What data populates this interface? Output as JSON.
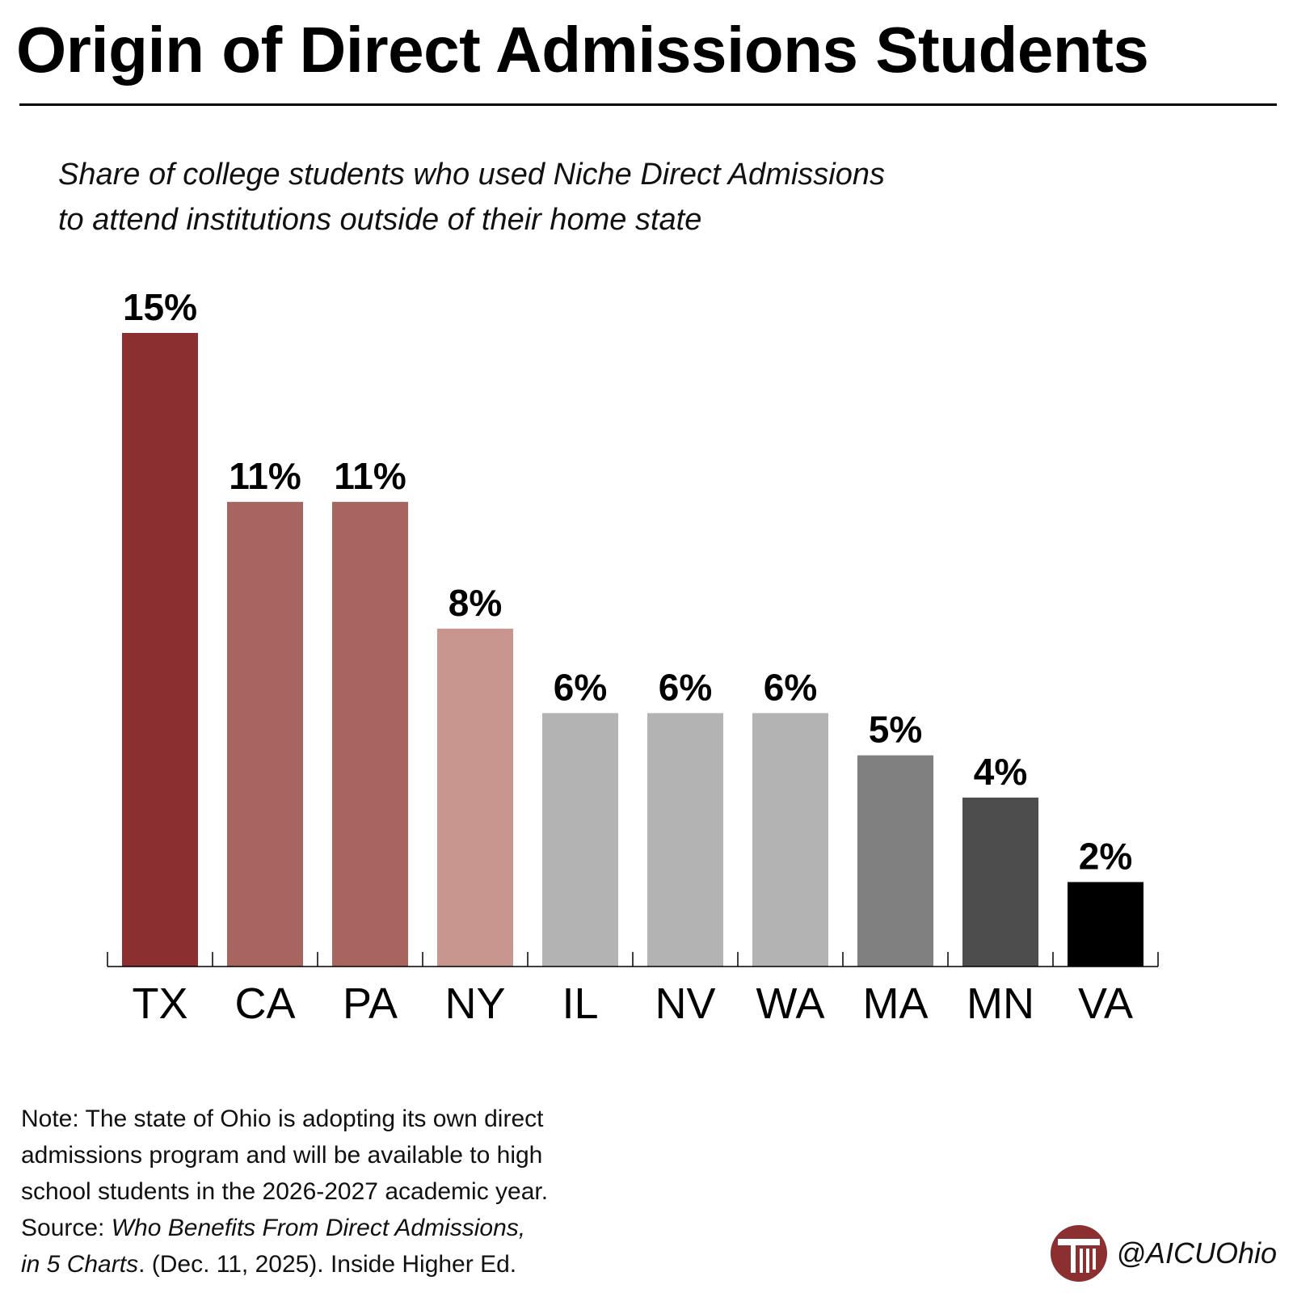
{
  "header": {
    "title": "Origin of Direct Admissions Students",
    "subtitle_line1": "Share of college students who used Niche Direct Admissions",
    "subtitle_line2": "to attend institutions outside of their home state"
  },
  "chart_data": {
    "type": "bar",
    "title": "Origin of Direct Admissions Students",
    "subtitle": "Share of college students who used Niche Direct Admissions to attend institutions outside of their home state",
    "categories": [
      "TX",
      "CA",
      "PA",
      "NY",
      "IL",
      "NV",
      "WA",
      "MA",
      "MN",
      "VA"
    ],
    "values": [
      15,
      11,
      11,
      8,
      6,
      6,
      6,
      5,
      4,
      2
    ],
    "data_labels": [
      "15%",
      "11%",
      "11%",
      "8%",
      "6%",
      "6%",
      "6%",
      "5%",
      "4%",
      "2%"
    ],
    "colors": [
      "#8b2f31",
      "#a8645e",
      "#a8645e",
      "#c8958f",
      "#b3b3b3",
      "#b3b3b3",
      "#b3b3b3",
      "#808080",
      "#4d4d4d",
      "#000000"
    ],
    "ylim": [
      0,
      15
    ],
    "xlabel": "",
    "ylabel": "",
    "grid": false,
    "legend": "none"
  },
  "footer": {
    "note_line1": "Note: The state of Ohio is adopting its own direct",
    "note_line2": "admissions program and will be available to high",
    "note_line3": "school students in the 2026-2027 academic year.",
    "source_prefix": "Source: ",
    "source_title_line1": "Who Benefits From Direct Admissions,",
    "source_title_line2": "in 5 Charts",
    "source_suffix": ". (Dec. 11, 2025). Inside Higher Ed."
  },
  "brand": {
    "handle": "@AICUOhio",
    "logo_icon": "column-logo-icon",
    "accent": "#8b2f31"
  }
}
